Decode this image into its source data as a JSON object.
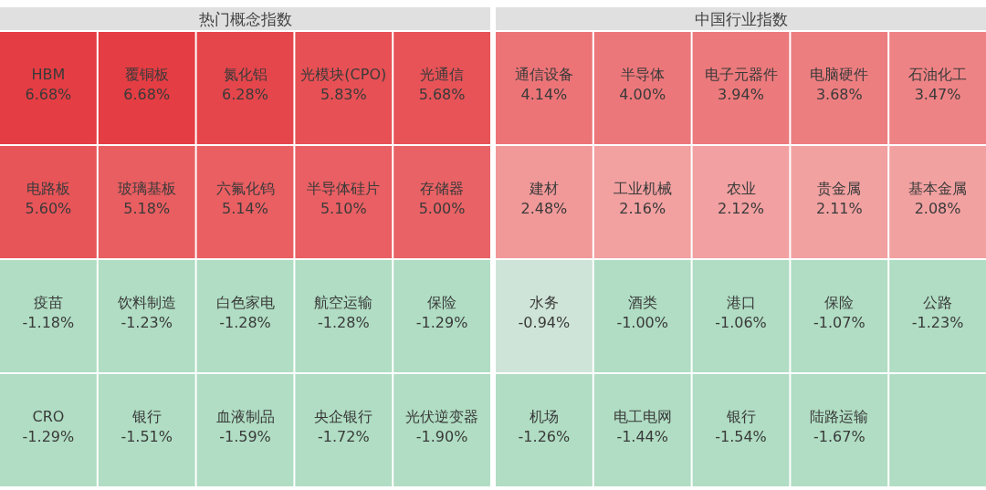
{
  "chart_data": [
    {
      "type": "other",
      "title": "热门概念指数",
      "categories": [
        "HBM",
        "覆铜板",
        "氮化铝",
        "光模块(CPO)",
        "光通信",
        "电路板",
        "玻璃基板",
        "六氟化钨",
        "半导体硅片",
        "存储器",
        "疫苗",
        "饮料制造",
        "白色家电",
        "航空运输",
        "保险",
        "CRO",
        "银行",
        "血液制品",
        "央企银行",
        "光伏逆变器"
      ],
      "values": [
        6.68,
        6.68,
        6.28,
        5.83,
        5.68,
        5.6,
        5.18,
        5.14,
        5.1,
        5.0,
        -1.18,
        -1.23,
        -1.28,
        -1.28,
        -1.29,
        -1.29,
        -1.51,
        -1.59,
        -1.72,
        -1.9
      ],
      "value_labels": [
        "6.68%",
        "6.68%",
        "6.28%",
        "5.83%",
        "5.68%",
        "5.60%",
        "5.18%",
        "5.14%",
        "5.10%",
        "5.00%",
        "-1.18%",
        "-1.23%",
        "-1.28%",
        "-1.28%",
        "-1.29%",
        "-1.29%",
        "-1.51%",
        "-1.59%",
        "-1.72%",
        "-1.90%"
      ]
    },
    {
      "type": "other",
      "title": "中国行业指数",
      "categories": [
        "通信设备",
        "半导体",
        "电子元器件",
        "电脑硬件",
        "石油化工",
        "建材",
        "工业机械",
        "农业",
        "贵金属",
        "基本金属",
        "水务",
        "酒类",
        "港口",
        "保险",
        "公路",
        "机场",
        "电工电网",
        "银行",
        "陆路运输",
        null
      ],
      "values": [
        4.14,
        4.0,
        3.94,
        3.68,
        3.47,
        2.48,
        2.16,
        2.12,
        2.11,
        2.08,
        -0.94,
        -1.0,
        -1.06,
        -1.07,
        -1.23,
        -1.26,
        -1.44,
        -1.54,
        -1.67,
        null
      ],
      "value_labels": [
        "4.14%",
        "4.00%",
        "3.94%",
        "3.68%",
        "3.47%",
        "2.48%",
        "2.16%",
        "2.12%",
        "2.11%",
        "2.08%",
        "-0.94%",
        "-1.00%",
        "-1.06%",
        "-1.07%",
        "-1.23%",
        "-1.26%",
        "-1.44%",
        "-1.54%",
        "-1.67%",
        null
      ]
    }
  ]
}
